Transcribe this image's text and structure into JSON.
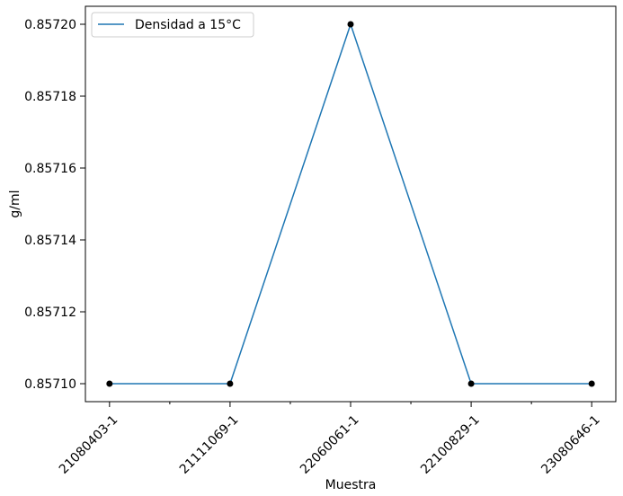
{
  "chart_data": {
    "type": "line",
    "categories": [
      "21080403-1",
      "21111069-1",
      "22060061-1",
      "22100829-1",
      "23080646-1"
    ],
    "series": [
      {
        "name": "Densidad a 15°C",
        "values": [
          0.8571,
          0.8571,
          0.8572,
          0.8571,
          0.8571
        ],
        "color": "#1f77b4",
        "marker_color": "#000000"
      }
    ],
    "xlabel": "Muestra",
    "ylabel": "g/ml",
    "ylim": [
      0.857095,
      0.857205
    ],
    "yticks": [
      0.8571,
      0.85712,
      0.85714,
      0.85716,
      0.85718,
      0.8572
    ],
    "ytick_labels": [
      "0.85710",
      "0.85712",
      "0.85714",
      "0.85716",
      "0.85718",
      "0.85720"
    ],
    "grid": false,
    "legend_position": "upper-left",
    "xtick_rotation": 45
  }
}
